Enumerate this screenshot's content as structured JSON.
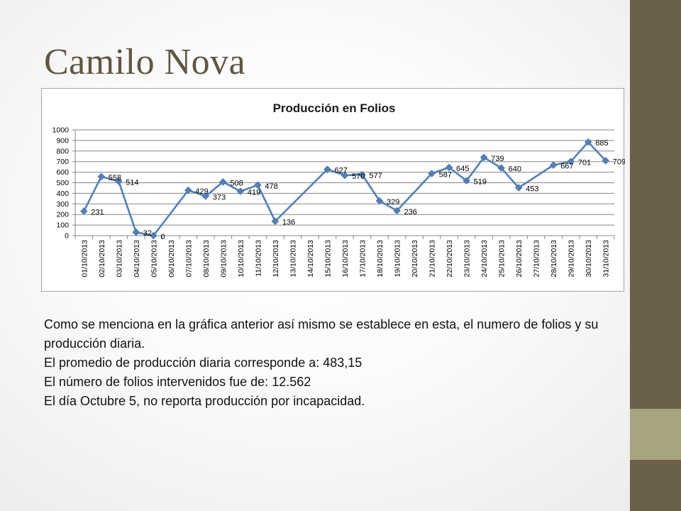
{
  "slide": {
    "title": "Camilo Nova",
    "paragraphs": [
      "Como se menciona en la gráfica anterior así mismo se establece en esta, el numero de folios y su producción diaria.",
      "El promedio de producción diaria corresponde a: 483,15",
      "El número de folios intervenidos fue de: 12.562",
      "El día Octubre 5, no reporta producción por incapacidad."
    ]
  },
  "colors": {
    "series": "#4f81bd",
    "sidebar": "#6b604a",
    "sidebar_accent": "#a7a57d",
    "title": "#615640"
  },
  "chart_data": {
    "type": "line",
    "title": "Producción en Folios",
    "xlabel": "",
    "ylabel": "",
    "ylim": [
      0,
      1000
    ],
    "yticks": [
      0,
      100,
      200,
      300,
      400,
      500,
      600,
      700,
      800,
      900,
      1000
    ],
    "grid": true,
    "legend": "none",
    "categories": [
      "01/10/2013",
      "02/10/2013",
      "03/10/2013",
      "04/10/2013",
      "05/10/2013",
      "06/10/2013",
      "07/10/2013",
      "08/10/2013",
      "09/10/2013",
      "10/10/2013",
      "11/10/2013",
      "12/10/2013",
      "13/10/2013",
      "14/10/2013",
      "15/10/2013",
      "16/10/2013",
      "17/10/2013",
      "18/10/2013",
      "19/10/2013",
      "20/10/2013",
      "21/10/2013",
      "22/10/2013",
      "23/10/2013",
      "24/10/2013",
      "25/10/2013",
      "26/10/2013",
      "27/10/2013",
      "28/10/2013",
      "29/10/2013",
      "30/10/2013",
      "31/10/2013"
    ],
    "series": [
      {
        "name": "",
        "values": [
          231,
          558,
          514,
          32,
          0,
          null,
          429,
          373,
          508,
          419,
          478,
          136,
          null,
          null,
          627,
          570,
          577,
          329,
          236,
          null,
          587,
          645,
          519,
          739,
          640,
          453,
          null,
          667,
          701,
          885,
          709
        ]
      }
    ]
  }
}
